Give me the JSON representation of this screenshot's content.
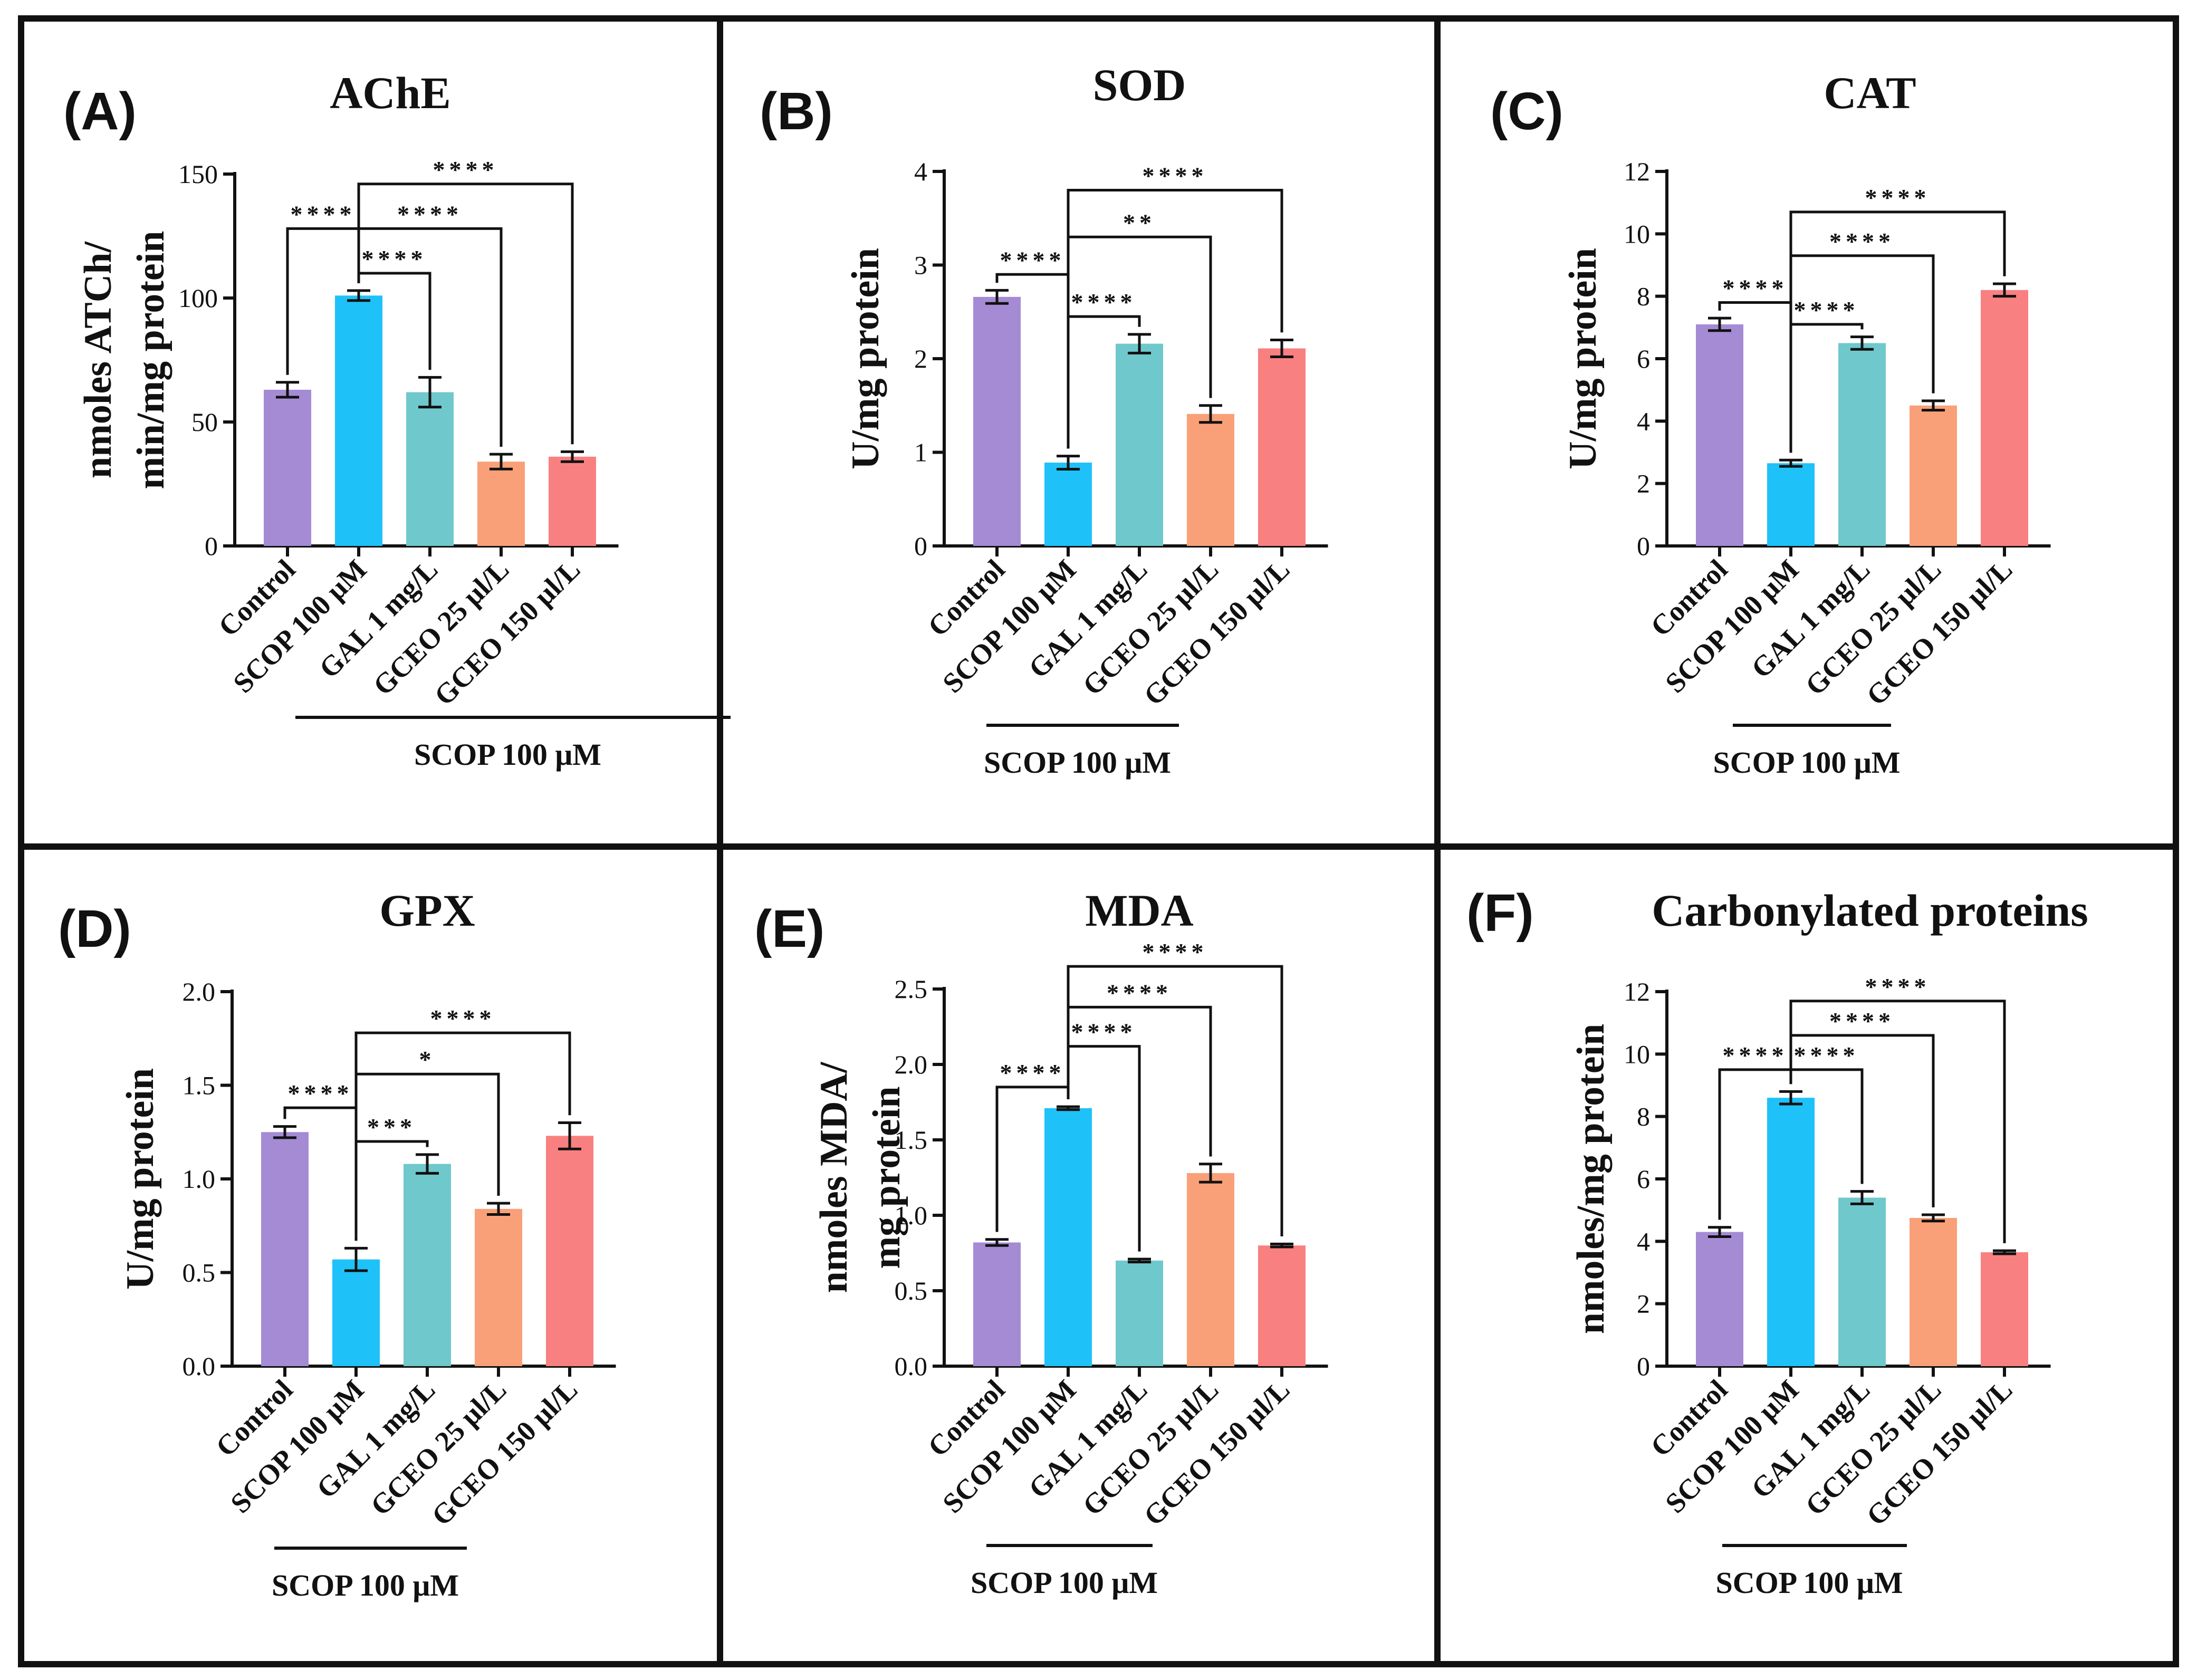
{
  "figure": {
    "group_label": "SCOP 100 μM"
  },
  "colors": {
    "control": "#a48bd4",
    "scop": "#1ec2f8",
    "gal": "#6fc8cc",
    "gceo25": "#f9a078",
    "gceo150": "#f98080",
    "axis": "#111111"
  },
  "chart_data": [
    {
      "type": "bar",
      "panel": "(A)",
      "title": "AChE",
      "ylabel": [
        "nmoles ATCh/",
        "min/mg protein"
      ],
      "ylim": [
        0,
        150
      ],
      "yticks": [
        "0",
        "50",
        "100",
        "150"
      ],
      "categories": [
        "Control",
        "SCOP 100 μM",
        "GAL 1 mg/L",
        "GCEO 25 µl/L",
        "GCEO 150 µl/L"
      ],
      "values": [
        63,
        101,
        62,
        34,
        36
      ],
      "errors": [
        3,
        2,
        6,
        3,
        2
      ],
      "significance": [
        {
          "from": 0,
          "to": 1,
          "label": "****",
          "y": 128
        },
        {
          "from": 1,
          "to": 2,
          "label": "****",
          "y": 110
        },
        {
          "from": 1,
          "to": 3,
          "label": "****",
          "y": 128
        },
        {
          "from": 1,
          "to": 4,
          "label": "****",
          "y": 146
        }
      ]
    },
    {
      "type": "bar",
      "panel": "(B)",
      "title": "SOD",
      "ylabel": [
        "U/mg protein"
      ],
      "ylim": [
        0,
        4
      ],
      "yticks": [
        "0",
        "1",
        "2",
        "3",
        "4"
      ],
      "categories": [
        "Control",
        "SCOP 100 μM",
        "GAL 1 mg/L",
        "GCEO 25 µl/L",
        "GCEO 150 µl/L"
      ],
      "values": [
        2.66,
        0.89,
        2.16,
        1.41,
        2.11
      ],
      "errors": [
        0.07,
        0.07,
        0.1,
        0.09,
        0.09
      ],
      "significance": [
        {
          "from": 0,
          "to": 1,
          "label": "****",
          "y": 2.9
        },
        {
          "from": 1,
          "to": 2,
          "label": "****",
          "y": 2.45
        },
        {
          "from": 1,
          "to": 3,
          "label": "**",
          "y": 3.3
        },
        {
          "from": 1,
          "to": 4,
          "label": "****",
          "y": 3.8
        }
      ]
    },
    {
      "type": "bar",
      "panel": "(C)",
      "title": "CAT",
      "ylabel": [
        "U/mg protein"
      ],
      "ylim": [
        0,
        12
      ],
      "yticks": [
        "0",
        "2",
        "4",
        "6",
        "8",
        "10",
        "12"
      ],
      "categories": [
        "Control",
        "SCOP 100 μM",
        "GAL 1 mg/L",
        "GCEO 25 µl/L",
        "GCEO 150 µl/L"
      ],
      "values": [
        7.1,
        2.65,
        6.5,
        4.5,
        8.2
      ],
      "errors": [
        0.2,
        0.1,
        0.2,
        0.15,
        0.2
      ],
      "significance": [
        {
          "from": 0,
          "to": 1,
          "label": "****",
          "y": 7.8
        },
        {
          "from": 1,
          "to": 2,
          "label": "****",
          "y": 7.1
        },
        {
          "from": 1,
          "to": 3,
          "label": "****",
          "y": 9.3
        },
        {
          "from": 1,
          "to": 4,
          "label": "****",
          "y": 10.7
        }
      ]
    },
    {
      "type": "bar",
      "panel": "(D)",
      "title": "GPX",
      "ylabel": [
        "U/mg protein"
      ],
      "ylim": [
        0,
        2.0
      ],
      "yticks": [
        "0.0",
        "0.5",
        "1.0",
        "1.5",
        "2.0"
      ],
      "categories": [
        "Control",
        "SCOP 100 μM",
        "GAL 1 mg/L",
        "GCEO 25 µl/L",
        "GCEO 150 µl/L"
      ],
      "values": [
        1.25,
        0.57,
        1.08,
        0.84,
        1.23
      ],
      "errors": [
        0.03,
        0.06,
        0.05,
        0.03,
        0.07
      ],
      "significance": [
        {
          "from": 0,
          "to": 1,
          "label": "****",
          "y": 1.38
        },
        {
          "from": 1,
          "to": 2,
          "label": "***",
          "y": 1.2
        },
        {
          "from": 1,
          "to": 3,
          "label": "*",
          "y": 1.56
        },
        {
          "from": 1,
          "to": 4,
          "label": "****",
          "y": 1.78
        }
      ]
    },
    {
      "type": "bar",
      "panel": "(E)",
      "title": "MDA",
      "ylabel": [
        "nmoles MDA/",
        "mg protein"
      ],
      "ylim": [
        0,
        2.5
      ],
      "yticks": [
        "0.0",
        "0.5",
        "1.0",
        "1.5",
        "2.0",
        "2.5"
      ],
      "categories": [
        "Control",
        "SCOP 100 μM",
        "GAL 1 mg/L",
        "GCEO 25 µl/L",
        "GCEO 150 µl/L"
      ],
      "values": [
        0.82,
        1.71,
        0.7,
        1.28,
        0.8
      ],
      "errors": [
        0.02,
        0.01,
        0.01,
        0.06,
        0.01
      ],
      "significance": [
        {
          "from": 0,
          "to": 1,
          "label": "****",
          "y": 1.85
        },
        {
          "from": 1,
          "to": 2,
          "label": "****",
          "y": 2.12
        },
        {
          "from": 1,
          "to": 3,
          "label": "****",
          "y": 2.38
        },
        {
          "from": 1,
          "to": 4,
          "label": "****",
          "y": 2.65
        }
      ]
    },
    {
      "type": "bar",
      "panel": "(F)",
      "title": "Carbonylated proteins",
      "ylabel": [
        "nmoles/mg protein"
      ],
      "ylim": [
        0,
        12
      ],
      "yticks": [
        "0",
        "2",
        "4",
        "6",
        "8",
        "10",
        "12"
      ],
      "categories": [
        "Control",
        "SCOP 100 μM",
        "GAL 1 mg/L",
        "GCEO 25 µl/L",
        "GCEO 150 µl/L"
      ],
      "values": [
        4.3,
        8.6,
        5.4,
        4.75,
        3.65
      ],
      "errors": [
        0.15,
        0.2,
        0.2,
        0.1,
        0.05
      ],
      "significance": [
        {
          "from": 0,
          "to": 1,
          "label": "****",
          "y": 9.5
        },
        {
          "from": 1,
          "to": 2,
          "label": "****",
          "y": 9.5
        },
        {
          "from": 1,
          "to": 3,
          "label": "****",
          "y": 10.6
        },
        {
          "from": 1,
          "to": 4,
          "label": "****",
          "y": 11.7
        }
      ]
    }
  ]
}
